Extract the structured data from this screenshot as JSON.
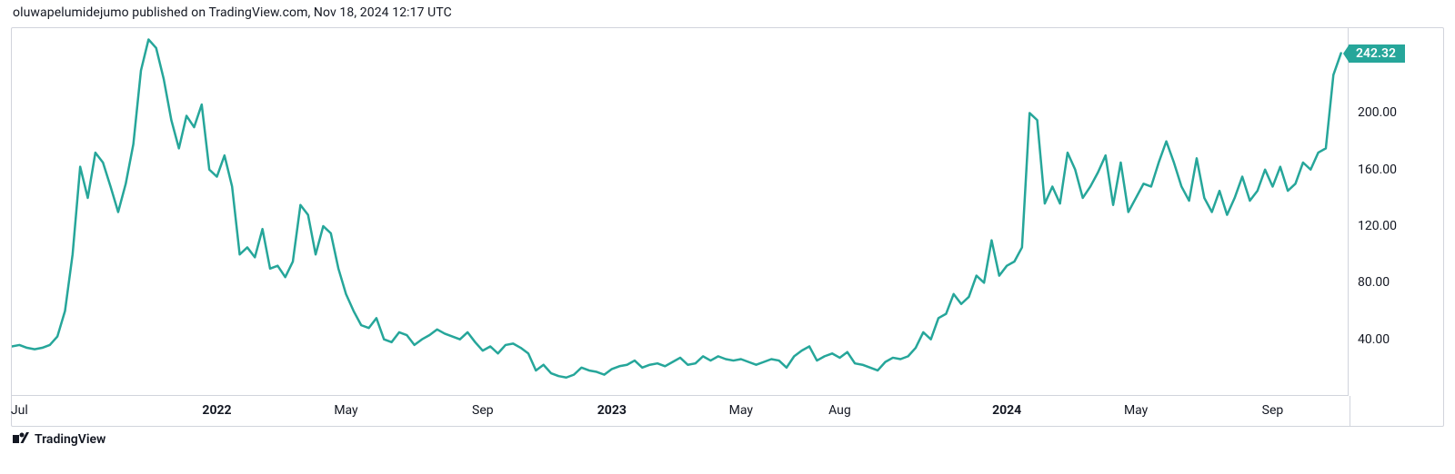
{
  "attribution": "oluwapelumidejumo published on TradingView.com, Nov 18, 2024 12:17 UTC",
  "footer_brand_glyph": "1 7",
  "footer_brand_text": "TradingView",
  "chart": {
    "type": "line",
    "line_color": "#26a69a",
    "line_width": 2.5,
    "background_color": "#ffffff",
    "border_color": "#d1d4dc",
    "price_tag": {
      "value": "242.32",
      "bg_color": "#26a69a",
      "text_color": "#ffffff"
    },
    "y_axis": {
      "min": 0,
      "max": 260,
      "ticks": [
        {
          "value": 40.0,
          "label": "40.00"
        },
        {
          "value": 80.0,
          "label": "80.00"
        },
        {
          "value": 120.0,
          "label": "120.00"
        },
        {
          "value": 160.0,
          "label": "160.00"
        },
        {
          "value": 200.0,
          "label": "200.00"
        }
      ],
      "label_fontsize": 14
    },
    "x_axis": {
      "min_index": 0,
      "max_index": 176,
      "label_fontsize": 14,
      "ticks": [
        {
          "index": 1,
          "label": "Jul",
          "bold": false
        },
        {
          "index": 27,
          "label": "2022",
          "bold": true
        },
        {
          "index": 44,
          "label": "May",
          "bold": false
        },
        {
          "index": 62,
          "label": "Sep",
          "bold": false
        },
        {
          "index": 79,
          "label": "2023",
          "bold": true
        },
        {
          "index": 96,
          "label": "May",
          "bold": false
        },
        {
          "index": 109,
          "label": "Aug",
          "bold": false
        },
        {
          "index": 131,
          "label": "2024",
          "bold": true
        },
        {
          "index": 148,
          "label": "May",
          "bold": false
        },
        {
          "index": 166,
          "label": "Sep",
          "bold": false
        }
      ]
    },
    "series": [
      35,
      36,
      34,
      33,
      34,
      36,
      42,
      60,
      100,
      162,
      140,
      172,
      165,
      148,
      130,
      150,
      178,
      230,
      252,
      246,
      224,
      195,
      175,
      198,
      190,
      206,
      160,
      155,
      170,
      148,
      100,
      105,
      98,
      118,
      90,
      92,
      84,
      95,
      135,
      128,
      100,
      120,
      115,
      90,
      72,
      60,
      50,
      48,
      55,
      40,
      38,
      45,
      43,
      36,
      40,
      43,
      47,
      44,
      42,
      40,
      45,
      38,
      32,
      35,
      30,
      36,
      37,
      34,
      30,
      18,
      22,
      16,
      14,
      13,
      15,
      20,
      18,
      17,
      15,
      19,
      21,
      22,
      25,
      20,
      22,
      23,
      21,
      24,
      27,
      22,
      23,
      28,
      25,
      28,
      26,
      25,
      26,
      24,
      22,
      24,
      26,
      25,
      20,
      28,
      32,
      35,
      25,
      28,
      30,
      27,
      31,
      23,
      22,
      20,
      18,
      24,
      27,
      26,
      28,
      34,
      45,
      40,
      55,
      58,
      72,
      65,
      70,
      85,
      80,
      110,
      85,
      92,
      95,
      105,
      200,
      195,
      136,
      148,
      136,
      172,
      160,
      140,
      148,
      158,
      170,
      135,
      165,
      130,
      140,
      150,
      148,
      165,
      180,
      165,
      148,
      138,
      168,
      140,
      130,
      145,
      128,
      140,
      155,
      138,
      145,
      160,
      148,
      162,
      145,
      150,
      165,
      160,
      172,
      175,
      227,
      242.32
    ]
  }
}
